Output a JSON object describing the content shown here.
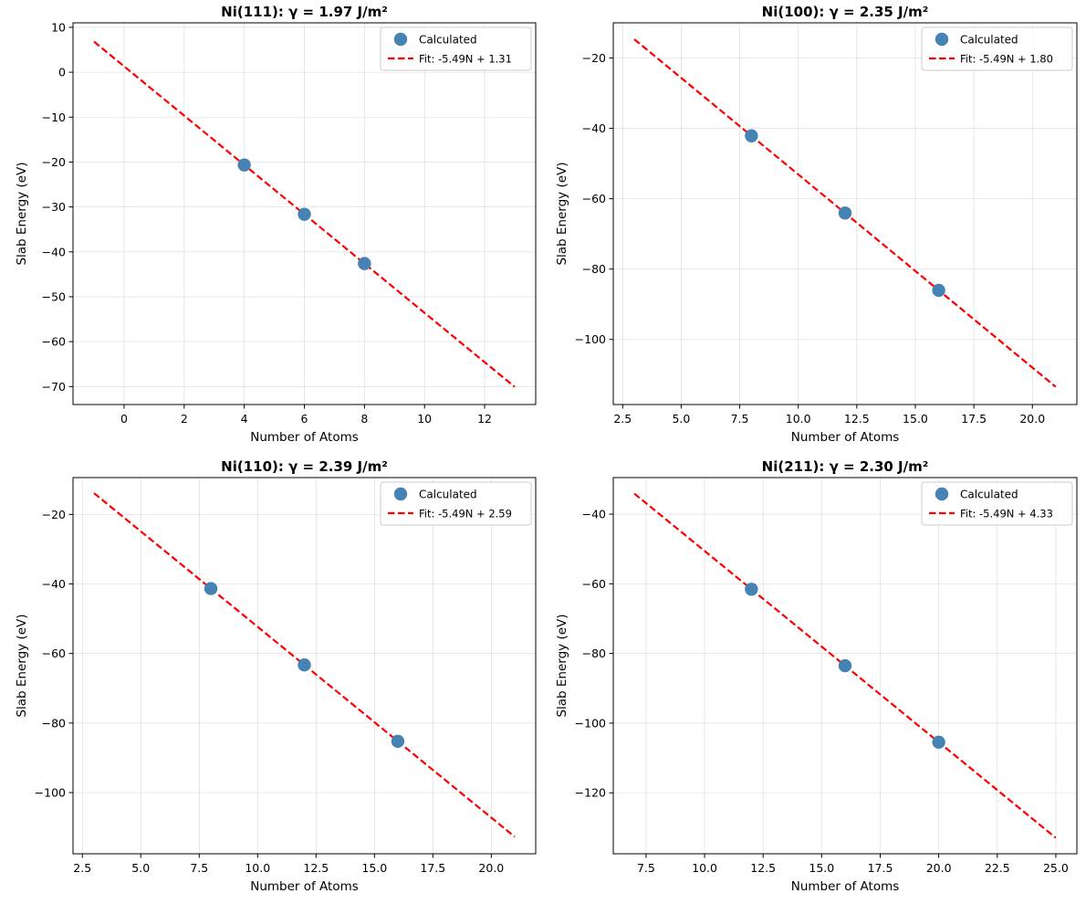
{
  "chart_data": [
    {
      "type": "scatter",
      "title": "Ni(111): γ = 1.97 J/m²",
      "xlabel": "Number of Atoms",
      "ylabel": "Slab Energy (eV)",
      "xlim": [
        -1.7,
        13.7
      ],
      "ylim": [
        -74,
        11
      ],
      "xticks": [
        0,
        2,
        4,
        6,
        8,
        10,
        12
      ],
      "yticks": [
        10,
        0,
        -10,
        -20,
        -30,
        -40,
        -50,
        -60,
        -70
      ],
      "x_decimals": 0,
      "grid": true,
      "legend_position": "top-right",
      "series": [
        {
          "name": "Calculated",
          "kind": "scatter",
          "color": "#4682b4",
          "x": [
            4,
            6,
            8
          ],
          "y": [
            -20.65,
            -31.63,
            -42.61
          ]
        },
        {
          "name": "Fit: -5.49N + 1.31",
          "kind": "line",
          "color": "#ff0000",
          "slope": -5.49,
          "intercept": 1.31,
          "x_range": [
            -1,
            13
          ]
        }
      ]
    },
    {
      "type": "scatter",
      "title": "Ni(100): γ = 2.35 J/m²",
      "xlabel": "Number of Atoms",
      "ylabel": "Slab Energy (eV)",
      "xlim": [
        2.1,
        21.9
      ],
      "ylim": [
        -118.5,
        -10
      ],
      "xticks": [
        2.5,
        5.0,
        7.5,
        10.0,
        12.5,
        15.0,
        17.5,
        20.0
      ],
      "yticks": [
        -20,
        -40,
        -60,
        -80,
        -100
      ],
      "x_decimals": 1,
      "grid": true,
      "legend_position": "top-right",
      "series": [
        {
          "name": "Calculated",
          "kind": "scatter",
          "color": "#4682b4",
          "x": [
            8,
            12,
            16
          ],
          "y": [
            -42.12,
            -64.08,
            -86.04
          ]
        },
        {
          "name": "Fit: -5.49N + 1.80",
          "kind": "line",
          "color": "#ff0000",
          "slope": -5.49,
          "intercept": 1.8,
          "x_range": [
            3,
            21
          ]
        }
      ]
    },
    {
      "type": "scatter",
      "title": "Ni(110): γ = 2.39 J/m²",
      "xlabel": "Number of Atoms",
      "ylabel": "Slab Energy (eV)",
      "xlim": [
        2.1,
        21.9
      ],
      "ylim": [
        -117.6,
        -9.4
      ],
      "xticks": [
        2.5,
        5.0,
        7.5,
        10.0,
        12.5,
        15.0,
        17.5,
        20.0
      ],
      "yticks": [
        -20,
        -40,
        -60,
        -80,
        -100
      ],
      "x_decimals": 1,
      "grid": true,
      "legend_position": "top-right",
      "series": [
        {
          "name": "Calculated",
          "kind": "scatter",
          "color": "#4682b4",
          "x": [
            8,
            12,
            16
          ],
          "y": [
            -41.33,
            -63.29,
            -85.25
          ]
        },
        {
          "name": "Fit: -5.49N + 2.59",
          "kind": "line",
          "color": "#ff0000",
          "slope": -5.49,
          "intercept": 2.59,
          "x_range": [
            3,
            21
          ]
        }
      ]
    },
    {
      "type": "scatter",
      "title": "Ni(211): γ = 2.30 J/m²",
      "xlabel": "Number of Atoms",
      "ylabel": "Slab Energy (eV)",
      "xlim": [
        6.1,
        25.9
      ],
      "ylim": [
        -137.5,
        -29.5
      ],
      "xticks": [
        7.5,
        10.0,
        12.5,
        15.0,
        17.5,
        20.0,
        22.5,
        25.0
      ],
      "yticks": [
        -40,
        -60,
        -80,
        -100,
        -120
      ],
      "x_decimals": 1,
      "grid": true,
      "legend_position": "top-right",
      "series": [
        {
          "name": "Calculated",
          "kind": "scatter",
          "color": "#4682b4",
          "x": [
            12,
            16,
            20
          ],
          "y": [
            -61.55,
            -83.51,
            -105.47
          ]
        },
        {
          "name": "Fit: -5.49N + 4.33",
          "kind": "line",
          "color": "#ff0000",
          "slope": -5.49,
          "intercept": 4.33,
          "x_range": [
            7,
            25
          ]
        }
      ]
    }
  ]
}
